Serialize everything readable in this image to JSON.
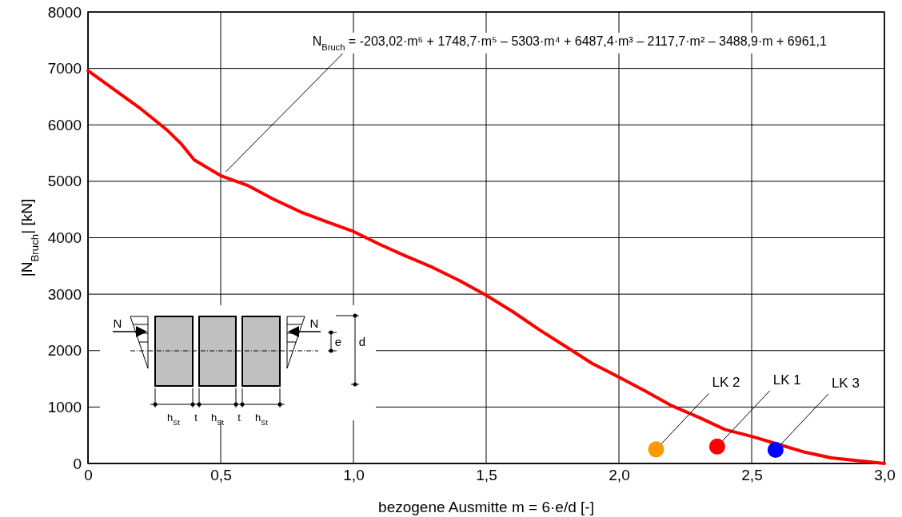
{
  "chart_data": {
    "type": "line",
    "xlabel": "bezogene Ausmitte m = 6·e/d [-]",
    "ylabel": "|N$_{Bruch}$| [kN]",
    "xlim": [
      0,
      3
    ],
    "xticks": [
      {
        "value": 0,
        "label": "0"
      },
      {
        "value": 0.5,
        "label": "0,5"
      },
      {
        "value": 1,
        "label": "1,0"
      },
      {
        "value": 1.5,
        "label": "1,5"
      },
      {
        "value": 2,
        "label": "2,0"
      },
      {
        "value": 2.5,
        "label": "2,5"
      },
      {
        "value": 3,
        "label": "3,0"
      }
    ],
    "ylim": [
      0,
      8000
    ],
    "yticks": [
      0,
      1000,
      2000,
      3000,
      4000,
      5000,
      6000,
      7000,
      8000
    ],
    "grid": true,
    "series": [
      {
        "color": "#ff0000",
        "x": [
          0,
          0.1,
          0.2,
          0.3,
          0.35,
          0.4,
          0.5,
          0.6,
          0.7,
          0.8,
          0.9,
          1.0,
          1.1,
          1.2,
          1.3,
          1.4,
          1.5,
          1.6,
          1.7,
          1.8,
          1.9,
          2.0,
          2.1,
          2.2,
          2.3,
          2.4,
          2.5,
          2.6,
          2.7,
          2.8,
          2.9,
          3.0
        ],
        "values": [
          6960,
          6620,
          6280,
          5900,
          5670,
          5380,
          5100,
          4930,
          4680,
          4460,
          4280,
          4110,
          3880,
          3670,
          3470,
          3240,
          2980,
          2690,
          2370,
          2070,
          1770,
          1530,
          1280,
          1020,
          820,
          600,
          480,
          340,
          200,
          100,
          50,
          0
        ]
      },
      {
        "type": "scatter",
        "name": "LK 2",
        "color": "#ff9900",
        "x": [
          2.14
        ],
        "values": [
          250
        ]
      },
      {
        "type": "scatter",
        "name": "LK 1",
        "color": "#ff0000",
        "x": [
          2.37
        ],
        "values": [
          300
        ]
      },
      {
        "type": "scatter",
        "name": "LK 3",
        "color": "#0000ff",
        "x": [
          2.59
        ],
        "values": [
          240
        ]
      }
    ],
    "annotations": [
      {
        "text": "N$_{Bruch}$ = -203,02·m⁶ + 1748,7·m⁵ – 5303·m⁴ + 6487,4·m³ – 2117,7·m² – 3488,9·m + 6961,1",
        "x": 0.52,
        "y": 5170
      },
      "N",
      "N",
      "e",
      "d",
      "h$_{St}$",
      "t",
      "h$_{St}$",
      "t",
      "h$_{St}$"
    ]
  }
}
